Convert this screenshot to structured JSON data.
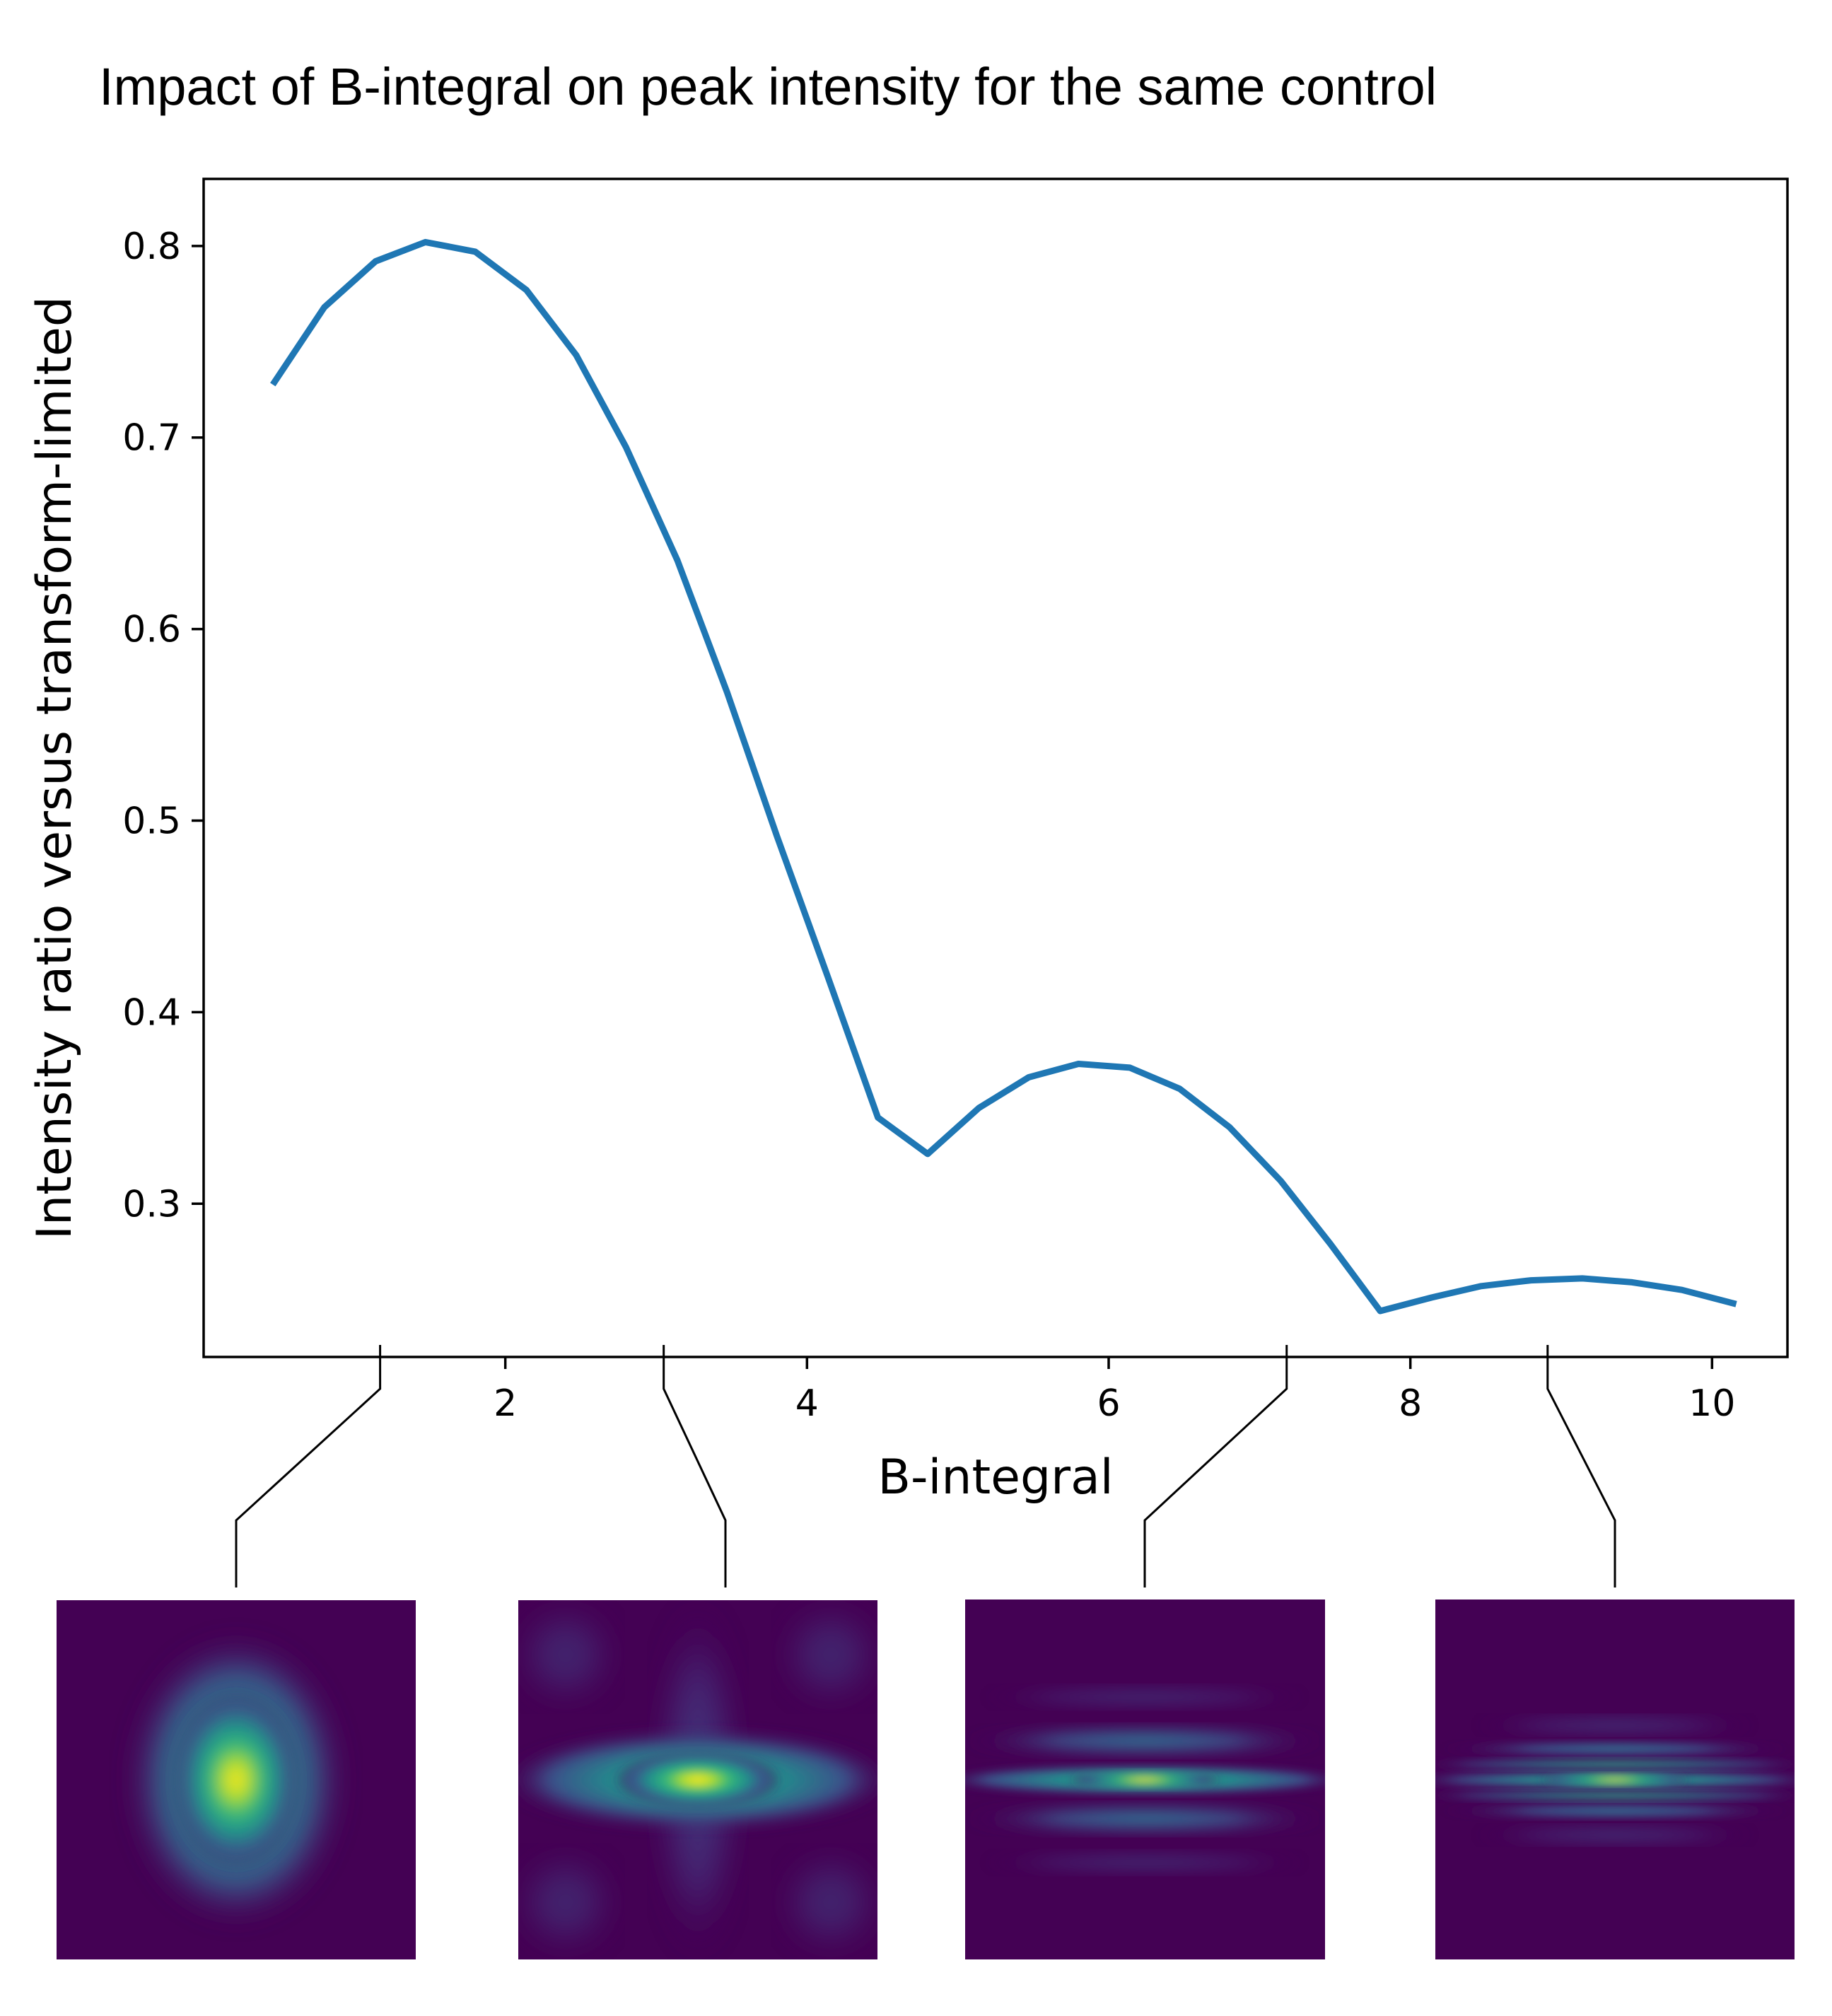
{
  "chart_data": {
    "type": "line",
    "title": "Impact of B-integral on peak intensity  for the same control",
    "xlabel": "B-integral",
    "ylabel": "Intensity ratio versus transform-limited",
    "xlim": [
      0.0,
      10.5
    ],
    "ylim": [
      0.22,
      0.835
    ],
    "xticks": [
      2,
      4,
      6,
      8,
      10
    ],
    "yticks": [
      0.3,
      0.4,
      0.5,
      0.6,
      0.7,
      0.8
    ],
    "xtick_labels": [
      "2",
      "4",
      "6",
      "8",
      "10"
    ],
    "ytick_labels": [
      "0.3",
      "0.4",
      "0.5",
      "0.6",
      "0.7",
      "0.8"
    ],
    "grid": false,
    "line_color": "#1f77b4",
    "series": [
      {
        "x": [
          0.47,
          0.8,
          1.14,
          1.47,
          1.8,
          2.14,
          2.47,
          2.8,
          3.14,
          3.47,
          3.8,
          4.14,
          4.47,
          4.8,
          5.14,
          5.47,
          5.8,
          6.14,
          6.47,
          6.8,
          7.14,
          7.47,
          7.8,
          8.14,
          8.47,
          8.8,
          9.14,
          9.47,
          9.8,
          10.14
        ],
        "y": [
          0.729,
          0.768,
          0.792,
          0.802,
          0.797,
          0.777,
          0.743,
          0.695,
          0.636,
          0.567,
          0.492,
          0.418,
          0.345,
          0.326,
          0.35,
          0.366,
          0.373,
          0.371,
          0.36,
          0.34,
          0.312,
          0.279,
          0.244,
          0.251,
          0.257,
          0.26,
          0.261,
          0.259,
          0.255,
          0.248
        ]
      }
    ],
    "annotations": {
      "marker_x": [
        1.17,
        3.05,
        7.18,
        8.91
      ],
      "inset_images": [
        {
          "pattern": "single elliptical focal spot",
          "colormap": "viridis"
        },
        {
          "pattern": "horizontal stretched spot with faint side lobes",
          "colormap": "viridis"
        },
        {
          "pattern": "horizontal stripe with parallel fringes",
          "colormap": "viridis"
        },
        {
          "pattern": "narrow horizontal stripe with multiple fringes",
          "colormap": "viridis"
        }
      ]
    }
  }
}
